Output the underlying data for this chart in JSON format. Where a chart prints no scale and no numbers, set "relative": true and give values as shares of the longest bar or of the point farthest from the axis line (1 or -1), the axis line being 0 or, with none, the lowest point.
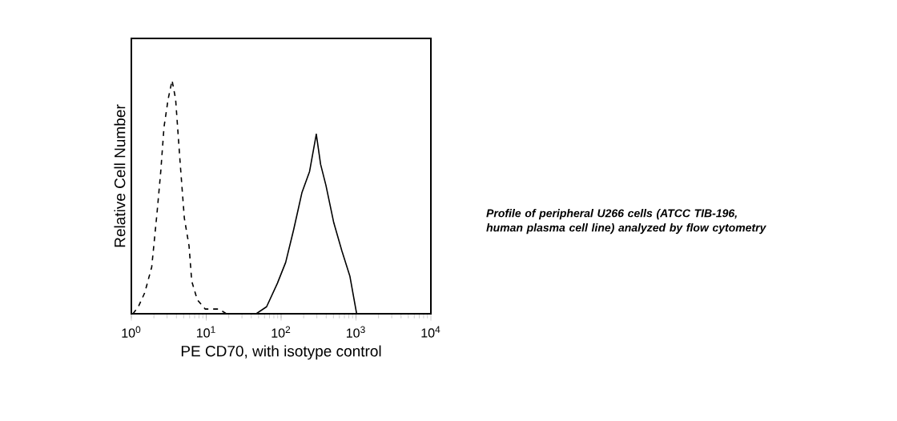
{
  "chart_data": {
    "type": "line",
    "relative": true,
    "xlabel": "PE CD70, with isotype control",
    "ylabel": "Relative Cell Number",
    "log": "x",
    "xlim": [
      1,
      10000
    ],
    "xticks": [
      {
        "value": 1,
        "label": "10$^{0}$"
      },
      {
        "value": 10,
        "label": "10$^{1}$"
      },
      {
        "value": 100,
        "label": "10$^{2}$"
      },
      {
        "value": 1000,
        "label": "10$^{3}$"
      },
      {
        "value": 10000,
        "label": "10$^{4}$"
      }
    ],
    "annotations": [
      "Profile of peripheral U266 cells (ATCC TIB-196, human plasma cell line) analyzed by flow cytometry"
    ],
    "series": [
      {
        "color": "#000000",
        "line_style": "dashed",
        "x": [
          1.05,
          1.24,
          1.51,
          1.87,
          2.2,
          2.47,
          2.73,
          3.1,
          3.5,
          3.9,
          4.5,
          5.1,
          5.9,
          6.4,
          7.6,
          9.7,
          14.7,
          18.7
        ],
        "values": [
          0,
          0.03,
          0.09,
          0.2,
          0.43,
          0.61,
          0.8,
          0.92,
          1.0,
          0.92,
          0.64,
          0.41,
          0.29,
          0.14,
          0.06,
          0.02,
          0.02,
          0
        ]
      },
      {
        "color": "#000000",
        "line_style": "solid",
        "x": [
          46.5,
          64,
          89,
          115,
          147,
          190,
          240,
          295,
          337,
          397,
          505,
          647,
          830,
          1020
        ],
        "values": [
          0,
          0.03,
          0.13,
          0.22,
          0.36,
          0.52,
          0.61,
          0.77,
          0.64,
          0.55,
          0.39,
          0.27,
          0.16,
          0
        ]
      }
    ]
  }
}
